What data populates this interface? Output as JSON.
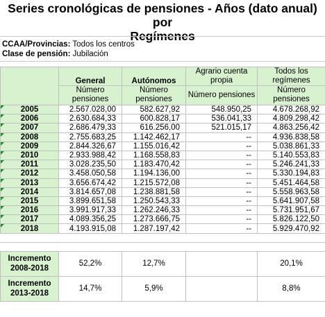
{
  "title_line1": "Series cronológicas de pensiones - Años (dato anual) por",
  "title_line2": "Regímenes",
  "ccaa_label": "CCAA/Provincias:",
  "ccaa_value": "Todos los centros",
  "clase_label": "Clase de pensión:",
  "clase_value": "Jubilación",
  "columns": {
    "general": "General",
    "autonomos": "Autónomos",
    "agrario_l1": "Agrario cuenta",
    "agrario_l2": "propia",
    "todos_l1": "Todos los",
    "todos_l2": "regímenes"
  },
  "sub": {
    "general_l1": "Número",
    "general_l2": "pensiones",
    "autonomos_l1": "Número",
    "autonomos_l2": "pensiones",
    "agrario": "Número pensiones",
    "todos_l1": "Número",
    "todos_l2": "pensiones"
  },
  "rows": [
    {
      "year": "2005",
      "general": "2.567.028,00",
      "autonomos": "582.627,92",
      "agrario": "548.950,25",
      "todos": "4.678.268,92"
    },
    {
      "year": "2006",
      "general": "2.630.684,33",
      "autonomos": "600.828,17",
      "agrario": "536.041,33",
      "todos": "4.809.298,42"
    },
    {
      "year": "2007",
      "general": "2.686.479,33",
      "autonomos": "616.256,00",
      "agrario": "521.015,17",
      "todos": "4.863.256,42"
    },
    {
      "year": "2008",
      "general": "2.755.683,25",
      "autonomos": "1.142.462,17",
      "agrario": "--",
      "todos": "4.936.838,58"
    },
    {
      "year": "2009",
      "general": "2.844.326,67",
      "autonomos": "1.155.016,42",
      "agrario": "--",
      "todos": "5.038.861,33"
    },
    {
      "year": "2010",
      "general": "2.933.988,42",
      "autonomos": "1.168.558,83",
      "agrario": "--",
      "todos": "5.140.553,83"
    },
    {
      "year": "2011",
      "general": "3.028.235,50",
      "autonomos": "1.183.470,42",
      "agrario": "--",
      "todos": "5.246.241,33"
    },
    {
      "year": "2012",
      "general": "3.458.050,58",
      "autonomos": "1.194.136,00",
      "agrario": "--",
      "todos": "5.330.194,83"
    },
    {
      "year": "2013",
      "general": "3.656.674,42",
      "autonomos": "1.215.572,08",
      "agrario": "--",
      "todos": "5.451.464,58"
    },
    {
      "year": "2014",
      "general": "3.814.657,08",
      "autonomos": "1.238.881,58",
      "agrario": "--",
      "todos": "5.558.963,58"
    },
    {
      "year": "2015",
      "general": "3.899.651,58",
      "autonomos": "1.250.543,33",
      "agrario": "--",
      "todos": "5.641.907,58"
    },
    {
      "year": "2016",
      "general": "3.991.917,33",
      "autonomos": "1.262.246,33",
      "agrario": "--",
      "todos": "5.731.951,67"
    },
    {
      "year": "2017",
      "general": "4.089.356,25",
      "autonomos": "1.273.666,75",
      "agrario": "--",
      "todos": "5.826.122,50"
    },
    {
      "year": "2018",
      "general": "4.193.915,08",
      "autonomos": "1.287.197,42",
      "agrario": "--",
      "todos": "5.929.470,92"
    }
  ],
  "increments": [
    {
      "label_l1": "Incremento",
      "label_l2": "2008-2018",
      "general": "52,2%",
      "autonomos": "12,7%",
      "agrario": "",
      "todos": "20,1%"
    },
    {
      "label_l1": "Incremento",
      "label_l2": "2013-2018",
      "general": "14,7%",
      "autonomos": "5,9%",
      "agrario": "",
      "todos": "8,8%"
    }
  ]
}
